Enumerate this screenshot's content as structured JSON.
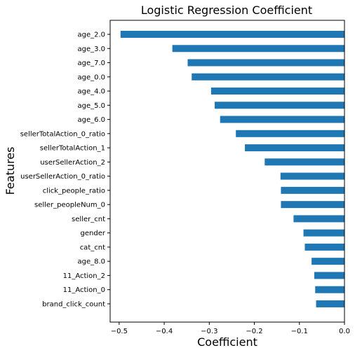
{
  "chart_data": {
    "type": "bar",
    "orientation": "horizontal",
    "title": "Logistic Regression Coefficient",
    "xlabel": "Coefficient",
    "ylabel": "Features",
    "xlim": [
      -0.52,
      0.0
    ],
    "xticks": [
      -0.5,
      -0.4,
      -0.3,
      -0.2,
      -0.1,
      0.0
    ],
    "xtick_labels": [
      "−0.5",
      "−0.4",
      "−0.3",
      "−0.2",
      "−0.1",
      "0.0"
    ],
    "grid": false,
    "legend": "none",
    "bar_color": "#1f77b4",
    "categories": [
      "age_2.0",
      "age_3.0",
      "age_7.0",
      "age_0.0",
      "age_4.0",
      "age_5.0",
      "age_6.0",
      "sellerTotalAction_0_ratio",
      "sellerTotalAction_1",
      "userSellerAction_2",
      "userSellerAction_0_ratio",
      "click_people_ratio",
      "seller_peopleNum_0",
      "seller_cnt",
      "gender",
      "cat_cnt",
      "age_8.0",
      "11_Action_2",
      "11_Action_0",
      "brand_click_count"
    ],
    "values": [
      -0.497,
      -0.382,
      -0.348,
      -0.339,
      -0.296,
      -0.288,
      -0.276,
      -0.241,
      -0.221,
      -0.177,
      -0.142,
      -0.141,
      -0.141,
      -0.113,
      -0.091,
      -0.088,
      -0.073,
      -0.067,
      -0.065,
      -0.063
    ]
  }
}
